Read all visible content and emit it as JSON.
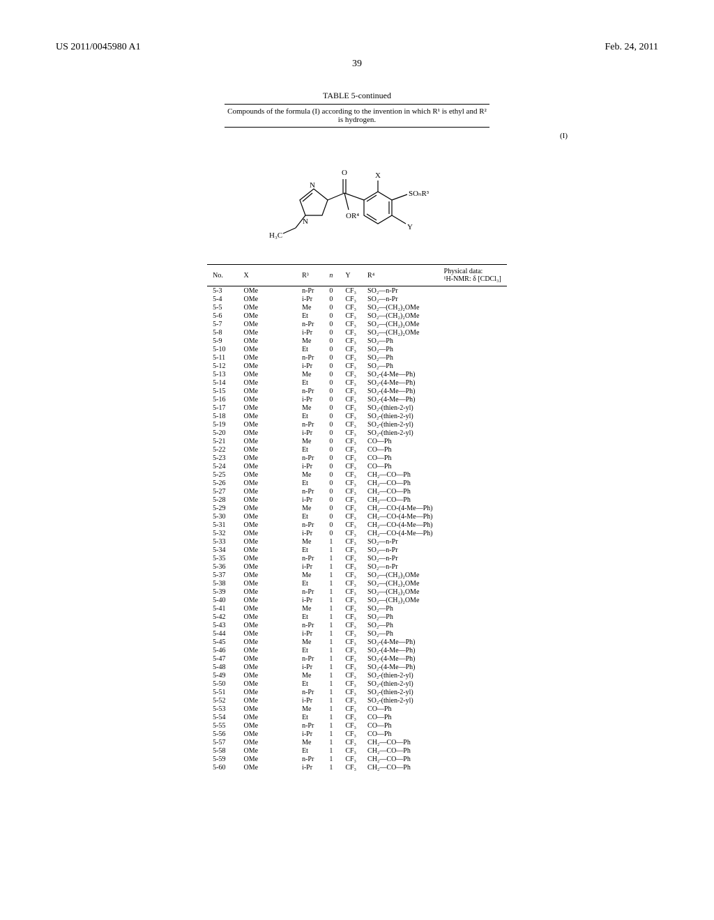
{
  "header": {
    "patent_number": "US 2011/0045980 A1",
    "date": "Feb. 24, 2011",
    "page": "39"
  },
  "table": {
    "title": "TABLE 5-continued",
    "caption": "Compounds of the formula (I) according to the invention in which R¹ is ethyl and R² is hydrogen.",
    "formula_label": "(I)",
    "columns": {
      "no": "No.",
      "x": "X",
      "r3": "R³",
      "n": "n",
      "y": "Y",
      "r4": "R⁴",
      "phys": "Physical data:\n¹H-NMR: δ [CDCl₃]"
    },
    "rows": [
      {
        "no": "5-3",
        "x": "OMe",
        "r3": "n-Pr",
        "n": "0",
        "y": "CF₃",
        "r4": "SO₂—n-Pr"
      },
      {
        "no": "5-4",
        "x": "OMe",
        "r3": "i-Pr",
        "n": "0",
        "y": "CF₃",
        "r4": "SO₂—n-Pr"
      },
      {
        "no": "5-5",
        "x": "OMe",
        "r3": "Me",
        "n": "0",
        "y": "CF₃",
        "r4": "SO₂—(CH₂)₂OMe"
      },
      {
        "no": "5-6",
        "x": "OMe",
        "r3": "Et",
        "n": "0",
        "y": "CF₃",
        "r4": "SO₂—(CH₂)₂OMe"
      },
      {
        "no": "5-7",
        "x": "OMe",
        "r3": "n-Pr",
        "n": "0",
        "y": "CF₃",
        "r4": "SO₂—(CH₂)₂OMe"
      },
      {
        "no": "5-8",
        "x": "OMe",
        "r3": "i-Pr",
        "n": "0",
        "y": "CF₃",
        "r4": "SO₂—(CH₂)₂OMe"
      },
      {
        "no": "5-9",
        "x": "OMe",
        "r3": "Me",
        "n": "0",
        "y": "CF₃",
        "r4": "SO₂—Ph"
      },
      {
        "no": "5-10",
        "x": "OMe",
        "r3": "Et",
        "n": "0",
        "y": "CF₃",
        "r4": "SO₂—Ph"
      },
      {
        "no": "5-11",
        "x": "OMe",
        "r3": "n-Pr",
        "n": "0",
        "y": "CF₃",
        "r4": "SO₂—Ph"
      },
      {
        "no": "5-12",
        "x": "OMe",
        "r3": "i-Pr",
        "n": "0",
        "y": "CF₃",
        "r4": "SO₂—Ph"
      },
      {
        "no": "5-13",
        "x": "OMe",
        "r3": "Me",
        "n": "0",
        "y": "CF₃",
        "r4": "SO₂-(4-Me—Ph)"
      },
      {
        "no": "5-14",
        "x": "OMe",
        "r3": "Et",
        "n": "0",
        "y": "CF₃",
        "r4": "SO₂-(4-Me—Ph)"
      },
      {
        "no": "5-15",
        "x": "OMe",
        "r3": "n-Pr",
        "n": "0",
        "y": "CF₃",
        "r4": "SO₂-(4-Me—Ph)"
      },
      {
        "no": "5-16",
        "x": "OMe",
        "r3": "i-Pr",
        "n": "0",
        "y": "CF₃",
        "r4": "SO₂-(4-Me—Ph)"
      },
      {
        "no": "5-17",
        "x": "OMe",
        "r3": "Me",
        "n": "0",
        "y": "CF₃",
        "r4": "SO₂-(thien-2-yl)"
      },
      {
        "no": "5-18",
        "x": "OMe",
        "r3": "Et",
        "n": "0",
        "y": "CF₃",
        "r4": "SO₂-(thien-2-yl)"
      },
      {
        "no": "5-19",
        "x": "OMe",
        "r3": "n-Pr",
        "n": "0",
        "y": "CF₃",
        "r4": "SO₂-(thien-2-yl)"
      },
      {
        "no": "5-20",
        "x": "OMe",
        "r3": "i-Pr",
        "n": "0",
        "y": "CF₃",
        "r4": "SO₂-(thien-2-yl)"
      },
      {
        "no": "5-21",
        "x": "OMe",
        "r3": "Me",
        "n": "0",
        "y": "CF₃",
        "r4": "CO—Ph"
      },
      {
        "no": "5-22",
        "x": "OMe",
        "r3": "Et",
        "n": "0",
        "y": "CF₃",
        "r4": "CO—Ph"
      },
      {
        "no": "5-23",
        "x": "OMe",
        "r3": "n-Pr",
        "n": "0",
        "y": "CF₃",
        "r4": "CO—Ph"
      },
      {
        "no": "5-24",
        "x": "OMe",
        "r3": "i-Pr",
        "n": "0",
        "y": "CF₃",
        "r4": "CO—Ph"
      },
      {
        "no": "5-25",
        "x": "OMe",
        "r3": "Me",
        "n": "0",
        "y": "CF₃",
        "r4": "CH₂—CO—Ph"
      },
      {
        "no": "5-26",
        "x": "OMe",
        "r3": "Et",
        "n": "0",
        "y": "CF₃",
        "r4": "CH₂—CO—Ph"
      },
      {
        "no": "5-27",
        "x": "OMe",
        "r3": "n-Pr",
        "n": "0",
        "y": "CF₃",
        "r4": "CH₂—CO—Ph"
      },
      {
        "no": "5-28",
        "x": "OMe",
        "r3": "i-Pr",
        "n": "0",
        "y": "CF₃",
        "r4": "CH₂—CO—Ph"
      },
      {
        "no": "5-29",
        "x": "OMe",
        "r3": "Me",
        "n": "0",
        "y": "CF₃",
        "r4": "CH₂—CO-(4-Me—Ph)"
      },
      {
        "no": "5-30",
        "x": "OMe",
        "r3": "Et",
        "n": "0",
        "y": "CF₃",
        "r4": "CH₂—CO-(4-Me—Ph)"
      },
      {
        "no": "5-31",
        "x": "OMe",
        "r3": "n-Pr",
        "n": "0",
        "y": "CF₃",
        "r4": "CH₂—CO-(4-Me—Ph)"
      },
      {
        "no": "5-32",
        "x": "OMe",
        "r3": "i-Pr",
        "n": "0",
        "y": "CF₃",
        "r4": "CH₂—CO-(4-Me—Ph)"
      },
      {
        "no": "5-33",
        "x": "OMe",
        "r3": "Me",
        "n": "1",
        "y": "CF₃",
        "r4": "SO₂—n-Pr"
      },
      {
        "no": "5-34",
        "x": "OMe",
        "r3": "Et",
        "n": "1",
        "y": "CF₃",
        "r4": "SO₂—n-Pr"
      },
      {
        "no": "5-35",
        "x": "OMe",
        "r3": "n-Pr",
        "n": "1",
        "y": "CF₃",
        "r4": "SO₂—n-Pr"
      },
      {
        "no": "5-36",
        "x": "OMe",
        "r3": "i-Pr",
        "n": "1",
        "y": "CF₃",
        "r4": "SO₂—n-Pr"
      },
      {
        "no": "5-37",
        "x": "OMe",
        "r3": "Me",
        "n": "1",
        "y": "CF₃",
        "r4": "SO₂—(CH₂)₂OMe"
      },
      {
        "no": "5-38",
        "x": "OMe",
        "r3": "Et",
        "n": "1",
        "y": "CF₃",
        "r4": "SO₂—(CH₂)₂OMe"
      },
      {
        "no": "5-39",
        "x": "OMe",
        "r3": "n-Pr",
        "n": "1",
        "y": "CF₃",
        "r4": "SO₂—(CH₂)₂OMe"
      },
      {
        "no": "5-40",
        "x": "OMe",
        "r3": "i-Pr",
        "n": "1",
        "y": "CF₃",
        "r4": "SO₂—(CH₂)₂OMe"
      },
      {
        "no": "5-41",
        "x": "OMe",
        "r3": "Me",
        "n": "1",
        "y": "CF₃",
        "r4": "SO₂—Ph"
      },
      {
        "no": "5-42",
        "x": "OMe",
        "r3": "Et",
        "n": "1",
        "y": "CF₃",
        "r4": "SO₂—Ph"
      },
      {
        "no": "5-43",
        "x": "OMe",
        "r3": "n-Pr",
        "n": "1",
        "y": "CF₃",
        "r4": "SO₂—Ph"
      },
      {
        "no": "5-44",
        "x": "OMe",
        "r3": "i-Pr",
        "n": "1",
        "y": "CF₃",
        "r4": "SO₂—Ph"
      },
      {
        "no": "5-45",
        "x": "OMe",
        "r3": "Me",
        "n": "1",
        "y": "CF₃",
        "r4": "SO₂-(4-Me—Ph)"
      },
      {
        "no": "5-46",
        "x": "OMe",
        "r3": "Et",
        "n": "1",
        "y": "CF₃",
        "r4": "SO₂-(4-Me—Ph)"
      },
      {
        "no": "5-47",
        "x": "OMe",
        "r3": "n-Pr",
        "n": "1",
        "y": "CF₃",
        "r4": "SO₂-(4-Me—Ph)"
      },
      {
        "no": "5-48",
        "x": "OMe",
        "r3": "i-Pr",
        "n": "1",
        "y": "CF₃",
        "r4": "SO₂-(4-Me—Ph)"
      },
      {
        "no": "5-49",
        "x": "OMe",
        "r3": "Me",
        "n": "1",
        "y": "CF₃",
        "r4": "SO₂-(thien-2-yl)"
      },
      {
        "no": "5-50",
        "x": "OMe",
        "r3": "Et",
        "n": "1",
        "y": "CF₃",
        "r4": "SO₂-(thien-2-yl)"
      },
      {
        "no": "5-51",
        "x": "OMe",
        "r3": "n-Pr",
        "n": "1",
        "y": "CF₃",
        "r4": "SO₂-(thien-2-yl)"
      },
      {
        "no": "5-52",
        "x": "OMe",
        "r3": "i-Pr",
        "n": "1",
        "y": "CF₃",
        "r4": "SO₂-(thien-2-yl)"
      },
      {
        "no": "5-53",
        "x": "OMe",
        "r3": "Me",
        "n": "1",
        "y": "CF₃",
        "r4": "CO—Ph"
      },
      {
        "no": "5-54",
        "x": "OMe",
        "r3": "Et",
        "n": "1",
        "y": "CF₃",
        "r4": "CO—Ph"
      },
      {
        "no": "5-55",
        "x": "OMe",
        "r3": "n-Pr",
        "n": "1",
        "y": "CF₃",
        "r4": "CO—Ph"
      },
      {
        "no": "5-56",
        "x": "OMe",
        "r3": "i-Pr",
        "n": "1",
        "y": "CF₃",
        "r4": "CO—Ph"
      },
      {
        "no": "5-57",
        "x": "OMe",
        "r3": "Me",
        "n": "1",
        "y": "CF₃",
        "r4": "CH₂—CO—Ph"
      },
      {
        "no": "5-58",
        "x": "OMe",
        "r3": "Et",
        "n": "1",
        "y": "CF₃",
        "r4": "CH₂—CO—Ph"
      },
      {
        "no": "5-59",
        "x": "OMe",
        "r3": "n-Pr",
        "n": "1",
        "y": "CF₃",
        "r4": "CH₂—CO—Ph"
      },
      {
        "no": "5-60",
        "x": "OMe",
        "r3": "i-Pr",
        "n": "1",
        "y": "CF₃",
        "r4": "CH₂—CO—Ph"
      }
    ]
  },
  "structure": {
    "labels": {
      "O": "O",
      "X": "X",
      "Y": "Y",
      "SOnR3": "SOₙR³",
      "OR4": "OR⁴",
      "N1": "N",
      "N2": "N",
      "H3C": "H₃C"
    },
    "style": {
      "stroke": "#000000",
      "stroke_width": 1.2,
      "font_size": 11
    }
  }
}
